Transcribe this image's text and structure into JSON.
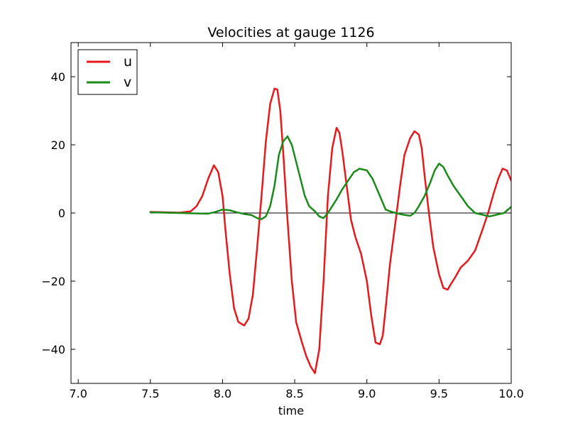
{
  "chart_data": {
    "type": "line",
    "title": "Velocities at gauge 1126",
    "xlabel": "time",
    "ylabel": "",
    "xlim": [
      6.95,
      10.0
    ],
    "ylim": [
      -50,
      50
    ],
    "xticks": [
      7.0,
      7.5,
      8.0,
      8.5,
      9.0,
      9.5,
      10.0
    ],
    "xtick_labels": [
      "7.0",
      "7.5",
      "8.0",
      "8.5",
      "9.0",
      "9.5",
      "10.0"
    ],
    "yticks": [
      -40,
      -20,
      0,
      20,
      40
    ],
    "ytick_labels": [
      "−40",
      "−20",
      "0",
      "20",
      "40"
    ],
    "grid": false,
    "legend_position": "top-left",
    "reference_line": {
      "y": 0,
      "color": "#000000"
    },
    "series": [
      {
        "name": "u",
        "color": "#e41a1c",
        "x": [
          7.5,
          7.6,
          7.7,
          7.78,
          7.82,
          7.86,
          7.9,
          7.94,
          7.97,
          8.0,
          8.02,
          8.05,
          8.08,
          8.11,
          8.15,
          8.18,
          8.21,
          8.24,
          8.27,
          8.3,
          8.33,
          8.36,
          8.38,
          8.4,
          8.42,
          8.45,
          8.48,
          8.51,
          8.55,
          8.58,
          8.61,
          8.64,
          8.67,
          8.7,
          8.73,
          8.76,
          8.79,
          8.81,
          8.83,
          8.86,
          8.89,
          8.92,
          8.96,
          9.0,
          9.03,
          9.06,
          9.09,
          9.11,
          9.13,
          9.16,
          9.2,
          9.23,
          9.26,
          9.3,
          9.33,
          9.36,
          9.38,
          9.4,
          9.43,
          9.46,
          9.5,
          9.53,
          9.56,
          9.58,
          9.61,
          9.65,
          9.7,
          9.75,
          9.8,
          9.84,
          9.88,
          9.91,
          9.94,
          9.97,
          10.0
        ],
        "y": [
          0.3,
          0.2,
          0.1,
          0.5,
          2,
          5,
          10,
          14,
          12,
          5,
          -5,
          -18,
          -28,
          -32,
          -33,
          -31,
          -24,
          -10,
          5,
          21,
          32,
          36.5,
          36.2,
          30,
          18,
          -2,
          -20,
          -32,
          -38,
          -42,
          -45,
          -47,
          -40,
          -20,
          5,
          19,
          25,
          23.5,
          18,
          8,
          -2,
          -7,
          -12,
          -20,
          -30,
          -38,
          -38.5,
          -36,
          -28,
          -15,
          -2,
          8,
          17,
          22,
          24,
          23,
          19,
          11,
          0,
          -10,
          -18,
          -22,
          -22.5,
          -21,
          -19,
          -16,
          -14,
          -11,
          -5,
          0,
          6,
          10,
          13,
          12.5,
          9.5
        ]
      },
      {
        "name": "v",
        "color": "#1a8a1a",
        "x": [
          7.5,
          7.6,
          7.7,
          7.8,
          7.9,
          7.95,
          8.0,
          8.05,
          8.1,
          8.15,
          8.2,
          8.24,
          8.27,
          8.3,
          8.33,
          8.36,
          8.39,
          8.42,
          8.45,
          8.48,
          8.51,
          8.54,
          8.57,
          8.6,
          8.64,
          8.67,
          8.7,
          8.73,
          8.76,
          8.79,
          8.83,
          8.87,
          8.91,
          8.95,
          9.0,
          9.04,
          9.07,
          9.1,
          9.13,
          9.16,
          9.2,
          9.25,
          9.3,
          9.33,
          9.36,
          9.4,
          9.44,
          9.47,
          9.5,
          9.53,
          9.56,
          9.6,
          9.65,
          9.7,
          9.75,
          9.8,
          9.85,
          9.9,
          9.95,
          10.0
        ],
        "y": [
          0.2,
          0.1,
          0.0,
          -0.1,
          -0.2,
          0.3,
          1.0,
          0.8,
          0.2,
          -0.3,
          -0.6,
          -1.5,
          -1.8,
          -1.0,
          2,
          8,
          17,
          21,
          22.5,
          20,
          15,
          10,
          5,
          2,
          0.5,
          -1,
          -1.5,
          0,
          2,
          4,
          7,
          9.5,
          12,
          13,
          12.5,
          10,
          7,
          4,
          1,
          0.5,
          0,
          -0.5,
          -0.8,
          0,
          2,
          5,
          9,
          12.5,
          14.5,
          13.5,
          11,
          8,
          5,
          2,
          0,
          -0.5,
          -1,
          -0.5,
          0,
          1.8
        ]
      }
    ]
  }
}
